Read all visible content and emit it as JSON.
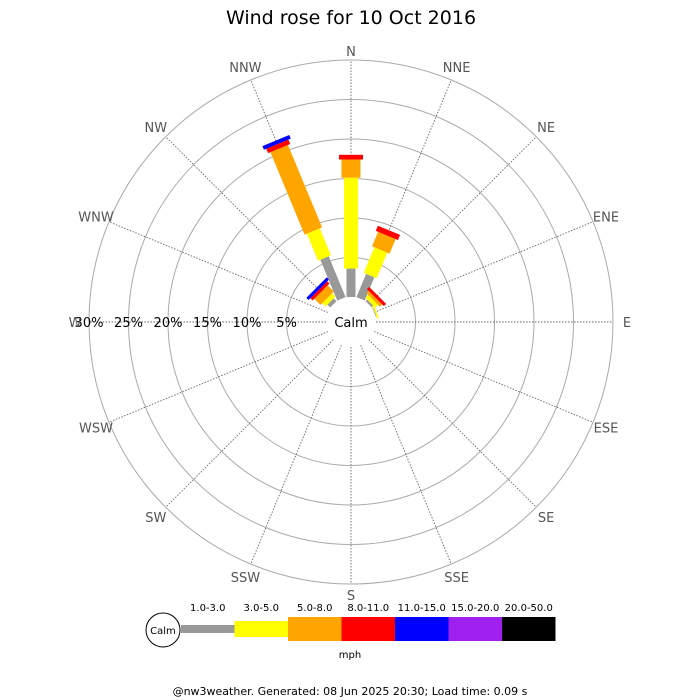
{
  "chart_data": {
    "type": "windrose",
    "title": "Wind rose for 10 Oct 2016",
    "calm_label": "Calm",
    "directions": [
      "N",
      "NNE",
      "NE",
      "ENE",
      "E",
      "ESE",
      "SE",
      "SSE",
      "S",
      "SSW",
      "SW",
      "WSW",
      "W",
      "WNW",
      "NW",
      "NNW"
    ],
    "radial_ticks": [
      5,
      10,
      15,
      20,
      25,
      30
    ],
    "radial_tick_labels": [
      "5%",
      "10%",
      "15%",
      "20%",
      "25%",
      "30%"
    ],
    "radial_max": 30,
    "units": "mph",
    "speed_bins": [
      {
        "label": "1.0-3.0",
        "color": "#999999"
      },
      {
        "label": "3.0-5.0",
        "color": "#ffff00"
      },
      {
        "label": "5.0-8.0",
        "color": "#ffa500"
      },
      {
        "label": "8.0-11.0",
        "color": "#ff0000"
      },
      {
        "label": "11.0-15.0",
        "color": "#0000ff"
      },
      {
        "label": "15.0-20.0",
        "color": "#a020f0"
      },
      {
        "label": "20.0-50.0",
        "color": "#000000"
      }
    ],
    "series": [
      {
        "direction": "N",
        "values": [
          3.6,
          11.5,
          2.3,
          0.6,
          0,
          0,
          0
        ]
      },
      {
        "direction": "NNE",
        "values": [
          3.2,
          3.5,
          2.0,
          0.7,
          0,
          0,
          0
        ]
      },
      {
        "direction": "NE",
        "values": [
          0.3,
          0.5,
          0.4,
          0.4,
          0,
          0,
          0
        ]
      },
      {
        "direction": "ENE",
        "values": [
          0.1,
          0.2,
          0,
          0,
          0,
          0,
          0
        ]
      },
      {
        "direction": "E",
        "values": [
          0,
          0,
          0,
          0,
          0,
          0,
          0
        ]
      },
      {
        "direction": "ESE",
        "values": [
          0,
          0,
          0,
          0,
          0,
          0,
          0
        ]
      },
      {
        "direction": "SE",
        "values": [
          0,
          0,
          0,
          0,
          0,
          0,
          0
        ]
      },
      {
        "direction": "SSE",
        "values": [
          0,
          0,
          0,
          0,
          0,
          0,
          0
        ]
      },
      {
        "direction": "S",
        "values": [
          0,
          0,
          0,
          0,
          0,
          0,
          0
        ]
      },
      {
        "direction": "SSW",
        "values": [
          0,
          0,
          0,
          0,
          0,
          0,
          0
        ]
      },
      {
        "direction": "SW",
        "values": [
          0,
          0,
          0,
          0,
          0,
          0,
          0
        ]
      },
      {
        "direction": "WSW",
        "values": [
          0,
          0,
          0,
          0,
          0,
          0,
          0
        ]
      },
      {
        "direction": "W",
        "values": [
          0,
          0,
          0,
          0,
          0,
          0,
          0
        ]
      },
      {
        "direction": "WNW",
        "values": [
          0,
          0,
          0,
          0,
          0,
          0,
          0
        ]
      },
      {
        "direction": "NW",
        "values": [
          0.5,
          0.6,
          1.1,
          0.4,
          0.4,
          0,
          0
        ]
      },
      {
        "direction": "NNW",
        "values": [
          5.6,
          3.7,
          11.3,
          0.6,
          0.5,
          0,
          0
        ]
      }
    ]
  },
  "footer": "@nw3weather. Generated: 08 Jun 2025 20:30; Load time: 0.09 s"
}
